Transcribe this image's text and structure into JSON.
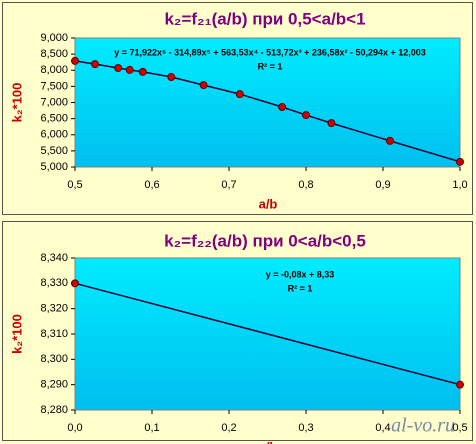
{
  "chart_data": [
    {
      "type": "line",
      "title": "k₂=f₂₁(a/b) при 0,5<a/b<1",
      "x_label": "a/b",
      "y_label": "k₂*100",
      "equation": "y = 71,922x⁶ - 314,89x⁵ + 563,53x⁴ - 513,72x³ + 236,58x² - 50,294x + 12,003",
      "r_squared": "R² = 1",
      "x": [
        0.5,
        0.526,
        0.556,
        0.571,
        0.588,
        0.625,
        0.667,
        0.714,
        0.769,
        0.8,
        0.833,
        0.909,
        1.0
      ],
      "series": [
        {
          "color": "#cc0000",
          "values": [
            8.29,
            8.19,
            8.07,
            8.01,
            7.95,
            7.79,
            7.54,
            7.26,
            6.86,
            6.61,
            6.36,
            5.81,
            5.16
          ]
        }
      ],
      "xlim": [
        0.5,
        1.0
      ],
      "ylim": [
        5,
        9
      ],
      "xticks": [
        {
          "value": 0.5,
          "label": "0,5"
        },
        {
          "value": 0.6,
          "label": "0,6"
        },
        {
          "value": 0.7,
          "label": "0,7"
        },
        {
          "value": 0.8,
          "label": "0,8"
        },
        {
          "value": 0.9,
          "label": "0,9"
        },
        {
          "value": 1.0,
          "label": "1,0"
        }
      ],
      "yticks": [
        {
          "value": 5,
          "label": "5,000"
        },
        {
          "value": 5.5,
          "label": "5,500"
        },
        {
          "value": 6,
          "label": "6,000"
        },
        {
          "value": 6.5,
          "label": "6,500"
        },
        {
          "value": 7,
          "label": "7,000"
        },
        {
          "value": 7.5,
          "label": "7,500"
        },
        {
          "value": 8,
          "label": "8,000"
        },
        {
          "value": 8.5,
          "label": "8,500"
        },
        {
          "value": 9,
          "label": "9,000"
        }
      ],
      "grid": false
    },
    {
      "type": "line",
      "title": "k₂=f₂₂(a/b) при 0<a/b<0,5",
      "x_label": "a/b",
      "y_label": "k₂*100",
      "equation": "y = -0,08x + 8,33",
      "r_squared": "R² = 1",
      "x": [
        0,
        0.5
      ],
      "series": [
        {
          "color": "#cc0000",
          "values": [
            8.33,
            8.29
          ]
        }
      ],
      "xlim": [
        0,
        0.5
      ],
      "ylim": [
        8.28,
        8.34
      ],
      "xticks": [
        {
          "value": 0,
          "label": "0,0"
        },
        {
          "value": 0.1,
          "label": "0,1"
        },
        {
          "value": 0.2,
          "label": "0,2"
        },
        {
          "value": 0.3,
          "label": "0,3"
        },
        {
          "value": 0.4,
          "label": "0,4"
        },
        {
          "value": 0.5,
          "label": "0,5"
        }
      ],
      "yticks": [
        {
          "value": 8.28,
          "label": "8,280"
        },
        {
          "value": 8.29,
          "label": "8,290"
        },
        {
          "value": 8.3,
          "label": "8,300"
        },
        {
          "value": 8.31,
          "label": "8,310"
        },
        {
          "value": 8.32,
          "label": "8,320"
        },
        {
          "value": 8.33,
          "label": "8,330"
        },
        {
          "value": 8.34,
          "label": "8,340"
        }
      ],
      "grid": false
    }
  ],
  "watermark": "al-vo.ru"
}
